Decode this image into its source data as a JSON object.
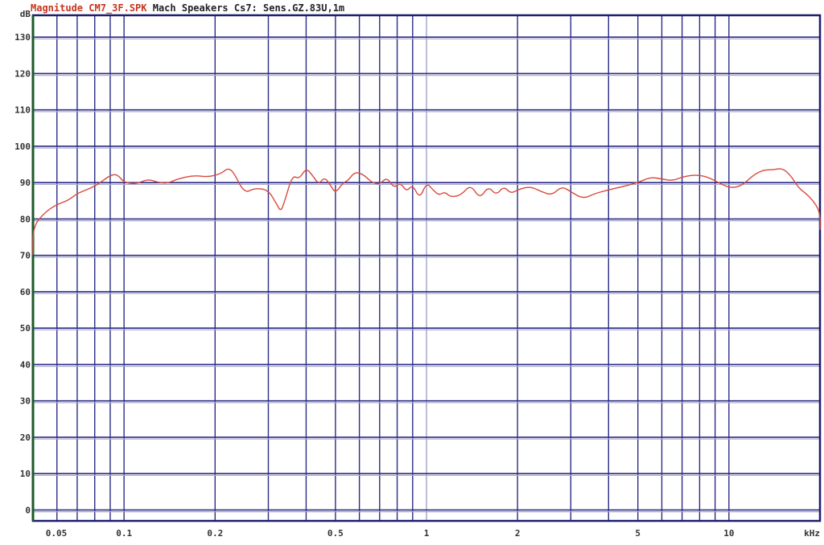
{
  "title": {
    "prefix": "Magnitude CM7_3F.SPK",
    "rest": "Mach Speakers Cs7: Sens.GZ.83U,1m",
    "prefix_color": "#c8341c",
    "rest_color": "#222222"
  },
  "colors": {
    "grid": "#2c2c86",
    "grid_light": "#a8a8cc",
    "frame": "#1c1c6e",
    "left_axis": "#1c5a2a",
    "curve": "#d9493a"
  },
  "chart_data": {
    "type": "line",
    "title": "Magnitude CM7_3F.SPK Mach Speakers Cs7: Sens.GZ.83U,1m",
    "xlabel": "kHz",
    "ylabel": "dB",
    "x_scale": "log",
    "xlim": [
      0.05,
      20
    ],
    "ylim": [
      -3,
      136
    ],
    "grid": true,
    "y_ticks": [
      {
        "value": 136,
        "label": "dB"
      },
      {
        "value": 130,
        "label": "130"
      },
      {
        "value": 120,
        "label": "120"
      },
      {
        "value": 110,
        "label": "110"
      },
      {
        "value": 100,
        "label": "100"
      },
      {
        "value": 90,
        "label": "90"
      },
      {
        "value": 80,
        "label": "80"
      },
      {
        "value": 70,
        "label": "70"
      },
      {
        "value": 60,
        "label": "60"
      },
      {
        "value": 50,
        "label": "50"
      },
      {
        "value": 40,
        "label": "40"
      },
      {
        "value": 30,
        "label": "30"
      },
      {
        "value": 20,
        "label": "20"
      },
      {
        "value": 10,
        "label": "10"
      },
      {
        "value": 0,
        "label": "0"
      }
    ],
    "x_ticks": [
      {
        "value": 0.05,
        "label": "0.05"
      },
      {
        "value": 0.1,
        "label": "0.1"
      },
      {
        "value": 0.2,
        "label": "0.2"
      },
      {
        "value": 0.5,
        "label": "0.5"
      },
      {
        "value": 1,
        "label": "1"
      },
      {
        "value": 2,
        "label": "2"
      },
      {
        "value": 5,
        "label": "5"
      },
      {
        "value": 10,
        "label": "10"
      },
      {
        "value": 20,
        "label": "kHz"
      }
    ],
    "x_gridlines": [
      0.05,
      0.06,
      0.07,
      0.08,
      0.09,
      0.1,
      0.2,
      0.3,
      0.4,
      0.5,
      0.6,
      0.7,
      0.8,
      0.9,
      1,
      2,
      3,
      4,
      5,
      6,
      7,
      8,
      9,
      10,
      20
    ],
    "y_gridlines": [
      0,
      10,
      20,
      30,
      40,
      50,
      60,
      70,
      80,
      90,
      100,
      110,
      120,
      130
    ],
    "series": [
      {
        "color": "#d9493a",
        "points": [
          [
            0.043,
            70.2
          ],
          [
            0.05,
            78
          ],
          [
            0.055,
            82
          ],
          [
            0.06,
            84
          ],
          [
            0.065,
            85
          ],
          [
            0.07,
            87
          ],
          [
            0.075,
            88
          ],
          [
            0.08,
            89
          ],
          [
            0.085,
            90.5
          ],
          [
            0.09,
            92
          ],
          [
            0.095,
            92.3
          ],
          [
            0.1,
            90
          ],
          [
            0.11,
            89.6
          ],
          [
            0.12,
            91
          ],
          [
            0.13,
            90
          ],
          [
            0.14,
            89.8
          ],
          [
            0.15,
            91
          ],
          [
            0.17,
            92
          ],
          [
            0.19,
            91.5
          ],
          [
            0.21,
            92.5
          ],
          [
            0.22,
            94
          ],
          [
            0.23,
            93
          ],
          [
            0.25,
            87
          ],
          [
            0.27,
            88.5
          ],
          [
            0.3,
            88
          ],
          [
            0.32,
            84
          ],
          [
            0.33,
            82
          ],
          [
            0.34,
            85
          ],
          [
            0.36,
            92
          ],
          [
            0.38,
            91
          ],
          [
            0.4,
            94
          ],
          [
            0.42,
            92
          ],
          [
            0.44,
            89.5
          ],
          [
            0.46,
            91.5
          ],
          [
            0.48,
            89.5
          ],
          [
            0.5,
            87
          ],
          [
            0.53,
            90
          ],
          [
            0.55,
            90.5
          ],
          [
            0.58,
            93
          ],
          [
            0.62,
            92.2
          ],
          [
            0.66,
            90
          ],
          [
            0.7,
            89.5
          ],
          [
            0.74,
            91.5
          ],
          [
            0.78,
            88.5
          ],
          [
            0.82,
            90
          ],
          [
            0.86,
            87.5
          ],
          [
            0.9,
            89.5
          ],
          [
            0.95,
            85.5
          ],
          [
            1.0,
            90
          ],
          [
            1.05,
            88
          ],
          [
            1.1,
            86.5
          ],
          [
            1.15,
            87.5
          ],
          [
            1.2,
            86
          ],
          [
            1.3,
            86.5
          ],
          [
            1.4,
            89.5
          ],
          [
            1.5,
            85.5
          ],
          [
            1.6,
            89
          ],
          [
            1.7,
            86.5
          ],
          [
            1.8,
            89
          ],
          [
            1.9,
            87
          ],
          [
            2.0,
            88
          ],
          [
            2.2,
            89
          ],
          [
            2.4,
            87.5
          ],
          [
            2.6,
            86.5
          ],
          [
            2.8,
            89
          ],
          [
            3.0,
            87.5
          ],
          [
            3.3,
            85.5
          ],
          [
            3.6,
            87
          ],
          [
            4.0,
            88
          ],
          [
            4.5,
            89
          ],
          [
            5.0,
            90
          ],
          [
            5.5,
            91.5
          ],
          [
            6.0,
            91
          ],
          [
            6.5,
            90.5
          ],
          [
            7.0,
            91.5
          ],
          [
            7.5,
            92
          ],
          [
            8.0,
            92
          ],
          [
            8.5,
            91.5
          ],
          [
            9.0,
            90.5
          ],
          [
            10,
            88.5
          ],
          [
            11,
            89
          ],
          [
            12,
            92
          ],
          [
            13,
            93.5
          ],
          [
            14,
            93.5
          ],
          [
            15,
            94
          ],
          [
            16,
            92
          ],
          [
            17,
            88.5
          ],
          [
            18,
            87
          ],
          [
            19,
            85
          ],
          [
            20,
            82
          ],
          [
            21,
            77
          ]
        ]
      }
    ]
  }
}
